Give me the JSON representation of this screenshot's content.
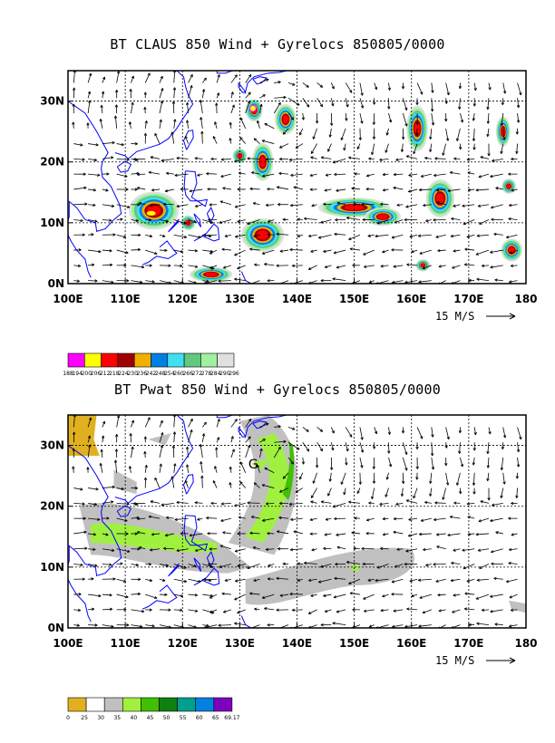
{
  "panels": [
    {
      "title": "BT CLAUS 850 Wind + Gyrelocs 850805/0000",
      "x_ticks": [
        "100E",
        "110E",
        "120E",
        "130E",
        "140E",
        "150E",
        "160E",
        "170E",
        "180"
      ],
      "y_ticks": [
        "0N",
        "10N",
        "20N",
        "30N"
      ],
      "vector_ref": "15 M/S",
      "colorbar": {
        "colors": [
          "#ff00ff",
          "#ffff00",
          "#ff0000",
          "#a00000",
          "#f0b000",
          "#0080e0",
          "#40e0f0",
          "#60c880",
          "#a0f0a0",
          "#e0e0e0"
        ],
        "labels": [
          "188",
          "194",
          "200",
          "206",
          "212",
          "218",
          "224",
          "230",
          "236",
          "242",
          "248",
          "254",
          "260",
          "266",
          "272",
          "278",
          "284",
          "290",
          "296"
        ]
      }
    },
    {
      "title": "BT Pwat 850 Wind + Gyrelocs 850805/0000",
      "x_ticks": [
        "100E",
        "110E",
        "120E",
        "130E",
        "140E",
        "150E",
        "160E",
        "170E",
        "180"
      ],
      "y_ticks": [
        "0N",
        "10N",
        "20N",
        "30N"
      ],
      "vector_ref": "15 M/S",
      "gyre_marker": "G",
      "colorbar": {
        "colors": [
          "#e0b020",
          "#ffffff",
          "#c0c0c0",
          "#a0f040",
          "#40c000",
          "#108010",
          "#00a090",
          "#0080e0",
          "#8000c0"
        ],
        "labels": [
          "0",
          "25",
          "30",
          "35",
          "40",
          "45",
          "50",
          "55",
          "60",
          "65",
          "69.17"
        ]
      }
    }
  ]
}
